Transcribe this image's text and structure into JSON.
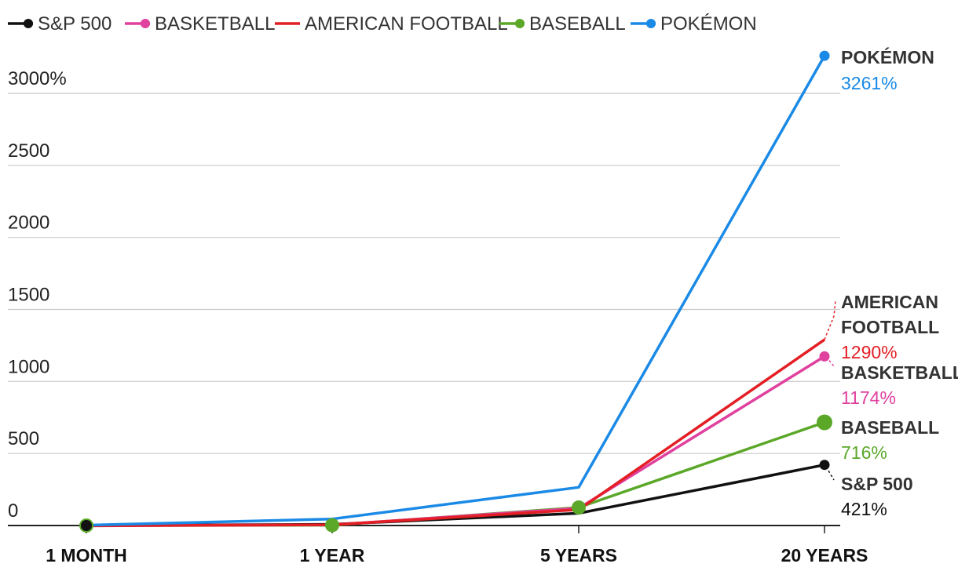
{
  "chart_data": {
    "type": "line",
    "title": "",
    "xlabel": "",
    "ylabel": "",
    "categories": [
      "1 MONTH",
      "1 YEAR",
      "5 YEARS",
      "20 YEARS"
    ],
    "y_ticks": [
      {
        "value": 0,
        "label": "0"
      },
      {
        "value": 500,
        "label": "500"
      },
      {
        "value": 1000,
        "label": "1000"
      },
      {
        "value": 1500,
        "label": "1500"
      },
      {
        "value": 2000,
        "label": "2000"
      },
      {
        "value": 2500,
        "label": "2500"
      },
      {
        "value": 3000,
        "label": "3000%"
      }
    ],
    "ylim": [
      0,
      3261
    ],
    "grid": true,
    "legend_position": "top-left",
    "series": [
      {
        "key": "pokemon",
        "name": "POKÉMON",
        "color": "#1a8ae6",
        "values": [
          2,
          45,
          265,
          3261
        ],
        "end_label": [
          "POKÉMON"
        ],
        "end_value": "3261%"
      },
      {
        "key": "football",
        "name": "AMERICAN FOOTBALL",
        "color": "#e31e24",
        "values": [
          -2,
          5,
          110,
          1290
        ],
        "end_label": [
          "AMERICAN",
          "FOOTBALL"
        ],
        "end_value": "1290%"
      },
      {
        "key": "basketball",
        "name": "BASKETBALL",
        "color": "#e0409e",
        "values": [
          0,
          5,
          120,
          1174
        ],
        "end_label": [
          "BASKETBALL"
        ],
        "end_value": "1174%"
      },
      {
        "key": "baseball",
        "name": "BASEBALL",
        "color": "#5ba829",
        "values": [
          0,
          2,
          125,
          716
        ],
        "end_label": [
          "BASEBALL"
        ],
        "end_value": "716%"
      },
      {
        "key": "sp500",
        "name": "S&P 500",
        "color": "#111111",
        "values": [
          0,
          8,
          85,
          421
        ],
        "end_label": [
          "S&P 500"
        ],
        "end_value": "421%"
      }
    ],
    "legend_order": [
      "sp500",
      "basketball",
      "football",
      "baseball",
      "pokemon"
    ]
  }
}
